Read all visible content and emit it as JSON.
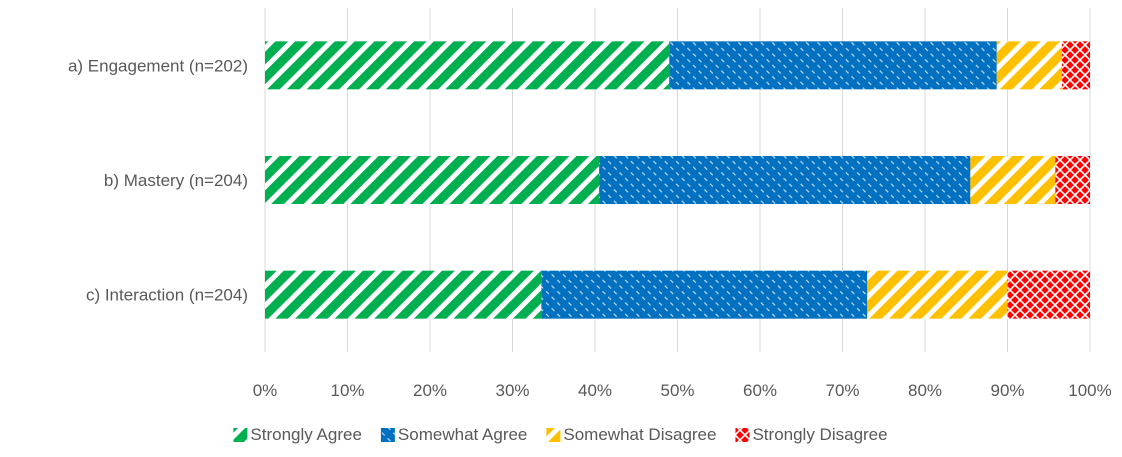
{
  "chart_data": {
    "type": "bar",
    "orientation": "horizontal",
    "stacked": "100%",
    "categories": [
      "a) Engagement (n=202)",
      "b) Mastery (n=204)",
      "c) Interaction (n=204)"
    ],
    "series": [
      {
        "name": "Strongly Agree",
        "values": [
          49.0,
          40.5,
          33.5
        ],
        "color": "#00B050",
        "pattern": "diagonal-stripes"
      },
      {
        "name": "Somewhat Agree",
        "values": [
          39.7,
          45.0,
          39.5
        ],
        "color": "#0070C0",
        "pattern": "dashed-diagonal"
      },
      {
        "name": "Somewhat Disagree",
        "values": [
          7.9,
          10.3,
          17.0
        ],
        "color": "#FFC000",
        "pattern": "diagonal-stripes"
      },
      {
        "name": "Strongly Disagree",
        "values": [
          3.4,
          4.2,
          10.0
        ],
        "color": "#FF0000",
        "pattern": "crosshatch"
      }
    ],
    "xlim": [
      0,
      100
    ],
    "xticks": [
      "0%",
      "10%",
      "20%",
      "30%",
      "40%",
      "50%",
      "60%",
      "70%",
      "80%",
      "90%",
      "100%"
    ],
    "grid": true,
    "legend": "bottom"
  }
}
